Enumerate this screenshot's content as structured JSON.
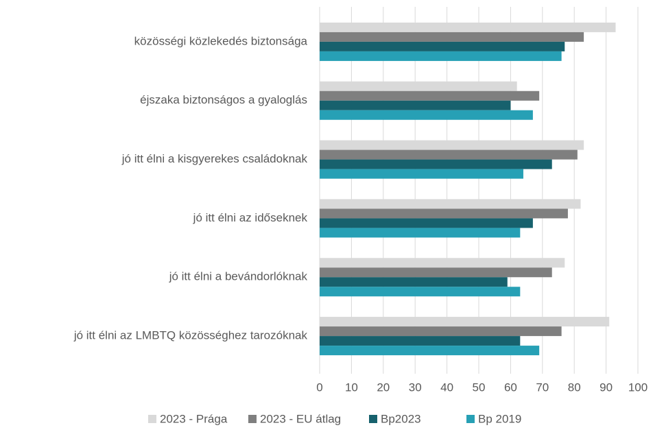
{
  "chart_data": {
    "type": "hbar",
    "categories": [
      "közösségi közlekedés biztonsága",
      "éjszaka biztonságos a gyaloglás",
      "jó itt élni a kisgyerekes családoknak",
      "jó itt élni az időseknek",
      "jó itt élni a bevándorlóknak",
      "jó itt élni az LMBTQ közösséghez tarozóknak"
    ],
    "series": [
      {
        "name": "2023 - Prága",
        "color": "#d9d9d9",
        "values": [
          93,
          62,
          83,
          82,
          77,
          91
        ]
      },
      {
        "name": "2023  - EU átlag",
        "color": "#7f7f7f",
        "values": [
          83,
          69,
          81,
          78,
          73,
          76
        ]
      },
      {
        "name": "Bp2023",
        "color": "#17616d",
        "values": [
          77,
          60,
          73,
          67,
          59,
          63
        ]
      },
      {
        "name": "Bp 2019",
        "color": "#27a0b5",
        "values": [
          76,
          67,
          64,
          63,
          63,
          69
        ]
      }
    ],
    "xlim": [
      0,
      100
    ],
    "xticks": [
      0,
      10,
      20,
      30,
      40,
      50,
      60,
      70,
      80,
      90,
      100
    ],
    "grid": true,
    "legend": "bottom"
  }
}
